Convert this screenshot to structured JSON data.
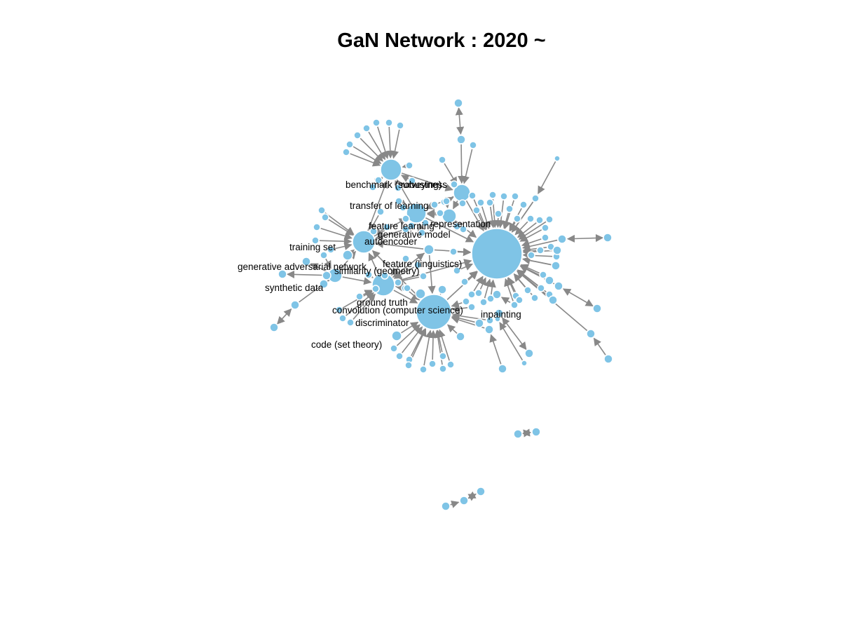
{
  "title": "GaN Network : 2020 ~",
  "colors": {
    "node": "#7fc4e6",
    "edge": "#888888",
    "label": "#000000"
  },
  "labels": {
    "benchmark": "benchmark (surveying)",
    "robustness": "robustness",
    "transfer_learning": "transfer of learning",
    "feature_learning": "feature learning",
    "representation": "representation",
    "generative_model": "generative model",
    "autoencoder": "autoencoder",
    "training_set": "training set",
    "feature_linguistics": "feature (linguistics)",
    "gan": "generative adversarial network",
    "similarity": "similarity (geometry)",
    "synthetic_data": "synthetic data",
    "ground_truth": "ground truth",
    "convolution": "convolution (computer science)",
    "inpainting": "inpainting",
    "discriminator": "discriminator",
    "code": "code (set theory)"
  }
}
